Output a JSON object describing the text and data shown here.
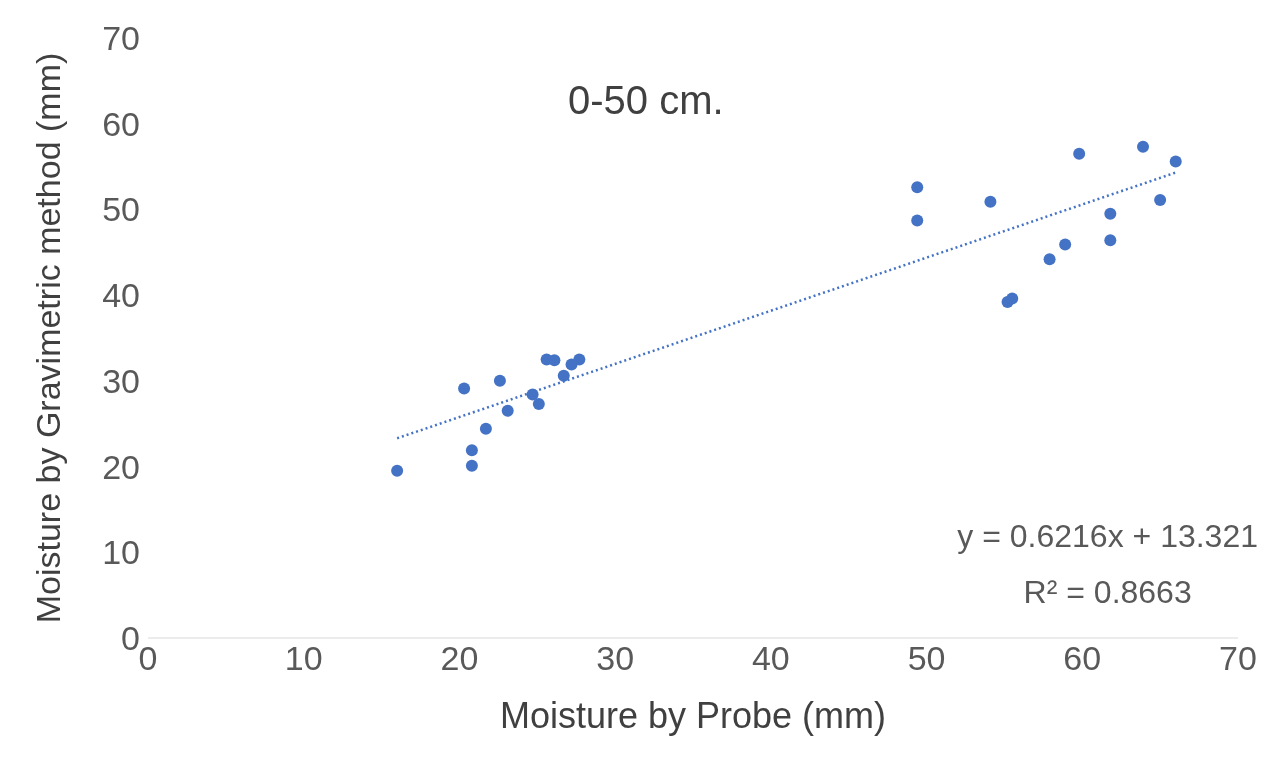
{
  "chart_data": {
    "type": "scatter",
    "title": "0-50 cm.",
    "xlabel": "Moisture by Probe (mm)",
    "ylabel": "Moisture by Gravimetric method (mm)",
    "xlim": [
      0,
      70
    ],
    "xticks": [
      0,
      10,
      20,
      30,
      40,
      50,
      60,
      70
    ],
    "ylim": [
      0,
      70
    ],
    "yticks": [
      0,
      10,
      20,
      30,
      40,
      50,
      60,
      70
    ],
    "series": [
      {
        "color": "#4472c4",
        "marker": "circle",
        "x": [
          16.0,
          20.3,
          20.8,
          20.8,
          21.7,
          22.6,
          23.1,
          24.7,
          25.1,
          25.6,
          26.1,
          26.7,
          27.2,
          27.7,
          49.4,
          49.4,
          54.1,
          55.2,
          55.5,
          57.9,
          58.9,
          59.8,
          61.8,
          61.8,
          63.9,
          65.0,
          66.0
        ],
        "values": [
          19.5,
          29.1,
          21.9,
          20.1,
          24.4,
          30.0,
          26.5,
          28.4,
          27.3,
          32.5,
          32.4,
          30.6,
          31.9,
          32.5,
          52.6,
          48.7,
          50.9,
          39.2,
          39.6,
          44.2,
          45.9,
          56.5,
          49.5,
          46.4,
          57.3,
          51.1,
          55.6
        ]
      },
      {
        "type": "line",
        "color": "#4472c4",
        "marker": "none",
        "line_style": "dotted",
        "x": [
          16.0,
          66.0
        ],
        "values": [
          23.3,
          54.3
        ]
      }
    ],
    "annotations": [
      "y = 0.6216x + 13.321",
      "R² = 0.8663"
    ]
  }
}
